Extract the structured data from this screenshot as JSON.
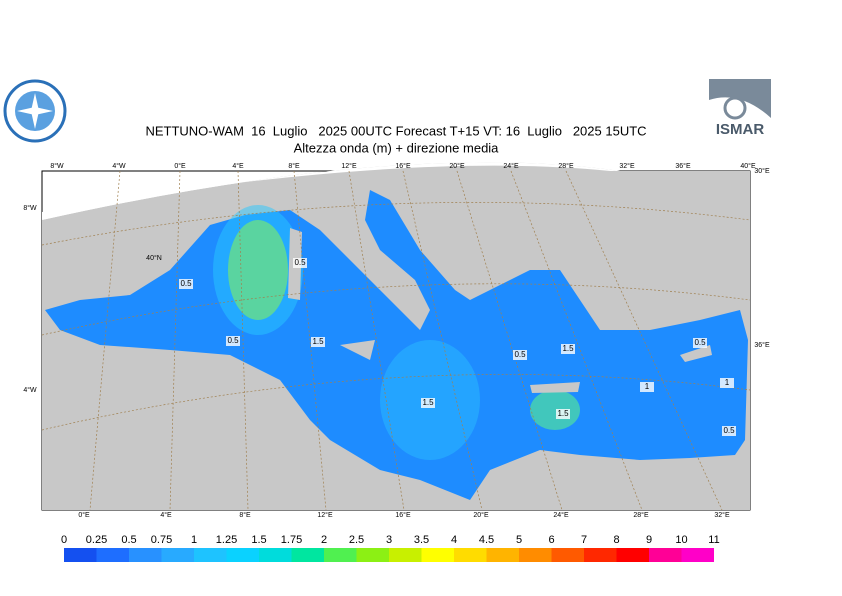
{
  "header": {
    "title": "NETTUNO-WAM  16  Luglio   2025 00UTC Forecast T+15 VT: 16  Luglio   2025 15UTC",
    "subtitle": "Altezza onda (m) + direzione media",
    "logo_text": "ISMAR"
  },
  "map": {
    "top_labels": [
      "8°W",
      "4°W",
      "0°E",
      "4°E",
      "8°E",
      "12°E",
      "16°E",
      "20°E",
      "24°E",
      "28°E",
      "32°E",
      "36°E",
      "40°E"
    ],
    "bottom_labels": [
      "0°E",
      "4°E",
      "8°E",
      "12°E",
      "16°E",
      "20°E",
      "24°E",
      "28°E",
      "32°E"
    ],
    "left_labels": [
      "8°W",
      "4°W"
    ],
    "right_labels": [
      "30°E",
      "36°E"
    ],
    "inner_labels": [
      "40°N"
    ],
    "contour_labels": [
      "0.5",
      "0.5",
      "0.5",
      "1.5",
      "1.5",
      "1.5",
      "1.5",
      "1",
      "1",
      "0.5",
      "0.5",
      "0.5"
    ]
  },
  "legend": {
    "labels": [
      "0",
      "0.25",
      "0.5",
      "0.75",
      "1",
      "1.25",
      "1.5",
      "1.75",
      "2",
      "2.5",
      "3",
      "3.5",
      "4",
      "4.5",
      "5",
      "6",
      "7",
      "8",
      "9",
      "10",
      "11"
    ],
    "colors": [
      "#1450f0",
      "#1e6eff",
      "#2891ff",
      "#28aaff",
      "#1ec3ff",
      "#0ad2ff",
      "#00dcdc",
      "#00e6a0",
      "#50f050",
      "#8cf014",
      "#c8f000",
      "#ffff00",
      "#ffdc00",
      "#ffb400",
      "#ff8c00",
      "#ff5a00",
      "#ff2800",
      "#ff0000",
      "#ff0096",
      "#ff00c8"
    ]
  }
}
